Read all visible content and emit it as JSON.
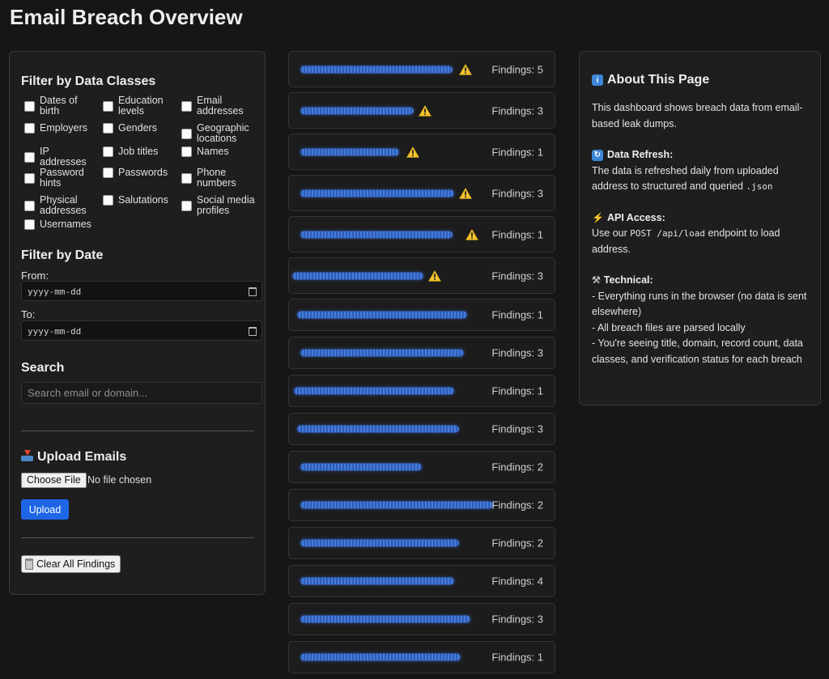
{
  "page_title": "Email Breach Overview",
  "filters": {
    "data_classes_title": "Filter by Data Classes",
    "data_classes": [
      {
        "label": "Dates of birth",
        "checked": false
      },
      {
        "label": "Education levels",
        "checked": false
      },
      {
        "label": "Email addresses",
        "checked": false
      },
      {
        "label": "Employers",
        "checked": false
      },
      {
        "label": "Genders",
        "checked": false
      },
      {
        "label": "Geographic locations",
        "checked": false
      },
      {
        "label": "IP addresses",
        "checked": false
      },
      {
        "label": "Job titles",
        "checked": false
      },
      {
        "label": "Names",
        "checked": false
      },
      {
        "label": "Password hints",
        "checked": false
      },
      {
        "label": "Passwords",
        "checked": false
      },
      {
        "label": "Phone numbers",
        "checked": false
      },
      {
        "label": "Physical addresses",
        "checked": false
      },
      {
        "label": "Salutations",
        "checked": false
      },
      {
        "label": "Social media profiles",
        "checked": false
      },
      {
        "label": "Usernames",
        "checked": false
      }
    ],
    "date_title": "Filter by Date",
    "from_label": "From:",
    "to_label": "To:",
    "date_placeholder": "yyyy-mm-dd",
    "search_title": "Search",
    "search_placeholder": "Search email or domain..."
  },
  "upload": {
    "title": "Upload Emails",
    "icon": "inbox-tray-icon",
    "choose_file_label": "Choose File",
    "no_file_text": "No file chosen",
    "upload_label": "Upload"
  },
  "clear_button_label": "Clear All Findings",
  "findings": [
    {
      "label": "Findings: 5",
      "warning": true
    },
    {
      "label": "Findings: 3",
      "warning": true
    },
    {
      "label": "Findings: 1",
      "warning": true
    },
    {
      "label": "Findings: 3",
      "warning": true
    },
    {
      "label": "Findings: 1",
      "warning": true
    },
    {
      "label": "Findings: 3",
      "warning": true
    },
    {
      "label": "Findings: 1",
      "warning": false
    },
    {
      "label": "Findings: 3",
      "warning": false
    },
    {
      "label": "Findings: 1",
      "warning": false
    },
    {
      "label": "Findings: 3",
      "warning": false
    },
    {
      "label": "Findings: 2",
      "warning": false
    },
    {
      "label": "Findings: 2",
      "warning": false
    },
    {
      "label": "Findings: 2",
      "warning": false
    },
    {
      "label": "Findings: 4",
      "warning": false
    },
    {
      "label": "Findings: 3",
      "warning": false
    },
    {
      "label": "Findings: 1",
      "warning": false
    }
  ],
  "about": {
    "title": "About This Page",
    "intro": "This dashboard shows breach data from email-based leak dumps.",
    "refresh_title": "Data Refresh:",
    "refresh_text": "The data is refreshed daily from uploaded address to structured and queried",
    "refresh_code": ".json",
    "api_title": "API Access:",
    "api_text_1": "Use our",
    "api_code": "POST /api/load",
    "api_text_2": "endpoint to load address.",
    "tech_title": "Technical:",
    "tech_items": [
      "- Everything runs in the browser (no data is sent elsewhere)",
      "- All breach files are parsed locally",
      "- You're seeing title, domain, record count, data classes, and verification status for each breach"
    ]
  },
  "colors": {
    "background": "#161616",
    "panel": "#1e1e1e",
    "accent_button": "#1e66e6",
    "warning": "#f2c230",
    "redacted_scribble": "#3a72e0"
  }
}
